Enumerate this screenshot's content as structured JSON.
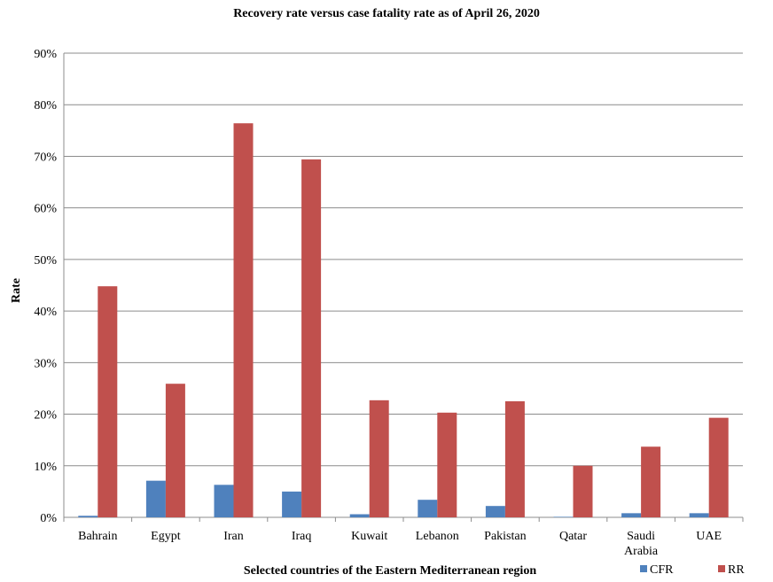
{
  "chart_data": {
    "type": "bar",
    "title": "Recovery rate versus case fatality rate as of  April  26,  2020",
    "xlabel": "Selected countries  of the  Eastern  Mediterranean  region",
    "ylabel": "Rate",
    "categories": [
      [
        "Bahrain"
      ],
      [
        "Egypt"
      ],
      [
        "Iran"
      ],
      [
        "Iraq"
      ],
      [
        "Kuwait"
      ],
      [
        "Lebanon"
      ],
      [
        "Pakistan"
      ],
      [
        "Qatar"
      ],
      [
        "Saudi",
        "Arabia"
      ],
      [
        "UAE"
      ]
    ],
    "series": [
      {
        "name": "CFR",
        "color": "#4f81bd",
        "values": [
          0.3,
          7.1,
          6.3,
          5.0,
          0.6,
          3.4,
          2.2,
          0.1,
          0.8,
          0.8
        ]
      },
      {
        "name": "RR",
        "color": "#c0504d",
        "values": [
          44.8,
          25.9,
          76.4,
          69.4,
          22.7,
          20.3,
          22.5,
          10.0,
          13.7,
          19.3
        ]
      }
    ],
    "ylim": [
      0,
      90
    ],
    "yticks": [
      0,
      10,
      20,
      30,
      40,
      50,
      60,
      70,
      80,
      90
    ],
    "ytick_suffix": "%",
    "grid": true,
    "legend_position": "bottom-right"
  }
}
